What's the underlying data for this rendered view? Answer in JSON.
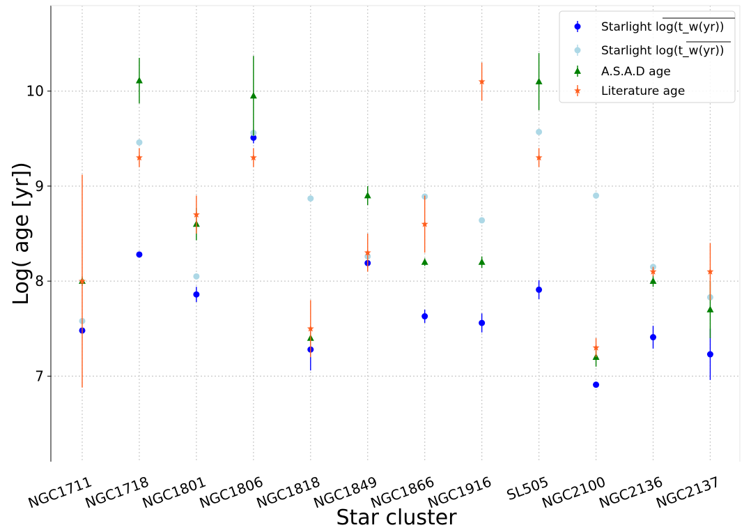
{
  "chart_data": {
    "type": "scatter",
    "xlabel": "Star cluster",
    "ylabel": "Log( age [yr])",
    "categories": [
      "NGC1711",
      "NGC1718",
      "NGC1801",
      "NGC1806",
      "NGC1818",
      "NGC1849",
      "NGC1866",
      "NGC1916",
      "SL505",
      "NGC2100",
      "NGC2136",
      "NGC2137"
    ],
    "ylim": [
      6.1,
      10.9
    ],
    "yticks": [
      7,
      8,
      9,
      10
    ],
    "grid": true,
    "legend_position": "top-right",
    "series": [
      {
        "name": "Starlight log(t_w(yr)) (overline over full log)",
        "legend_text": "Starlight",
        "legend_math": "log(t_w(yr))",
        "legend_variant": "bar-over-log",
        "marker": "circle",
        "color": "#0000ff",
        "values": [
          7.48,
          8.28,
          7.86,
          9.51,
          7.28,
          8.19,
          7.63,
          7.56,
          7.91,
          6.91,
          7.41,
          7.23
        ],
        "errors": [
          0.03,
          0.03,
          0.08,
          0.06,
          0.22,
          0.05,
          0.07,
          0.1,
          0.1,
          0.02,
          0.12,
          0.27
        ]
      },
      {
        "name": "Starlight log(overline t_w(yr))",
        "legend_text": "Starlight",
        "legend_math": "log(t_w(yr))",
        "legend_variant": "bar-inside-log",
        "marker": "circle",
        "color": "#add8e6",
        "values": [
          7.58,
          9.46,
          8.05,
          9.56,
          8.87,
          8.26,
          8.89,
          8.64,
          9.57,
          8.9,
          8.15,
          7.83
        ],
        "errors": [
          0.02,
          0.02,
          0.02,
          0.02,
          0.02,
          0.02,
          0.02,
          0.02,
          0.02,
          0.02,
          0.02,
          0.02
        ]
      },
      {
        "name": "A.S.A.D age",
        "legend_text": "A.S.A.D age",
        "marker": "triangle",
        "color": "#008000",
        "values": [
          8.0,
          10.11,
          8.6,
          9.95,
          7.4,
          8.9,
          8.2,
          8.2,
          10.1,
          7.2,
          8.0,
          7.7
        ],
        "errors": [
          0.05,
          0.24,
          0.17,
          0.42,
          0.06,
          0.1,
          0.04,
          0.06,
          0.3,
          0.1,
          0.06,
          0.3
        ]
      },
      {
        "name": "Literature age",
        "legend_text": "Literature age",
        "marker": "star",
        "color": "#ff5f1f",
        "values": [
          8.0,
          9.3,
          8.7,
          9.3,
          7.5,
          8.3,
          8.6,
          10.1,
          9.3,
          7.3,
          8.1,
          8.1
        ],
        "errors": [
          1.12,
          0.1,
          0.2,
          0.1,
          0.3,
          0.2,
          0.3,
          0.2,
          0.1,
          0.1,
          0.05,
          0.3
        ]
      }
    ]
  }
}
